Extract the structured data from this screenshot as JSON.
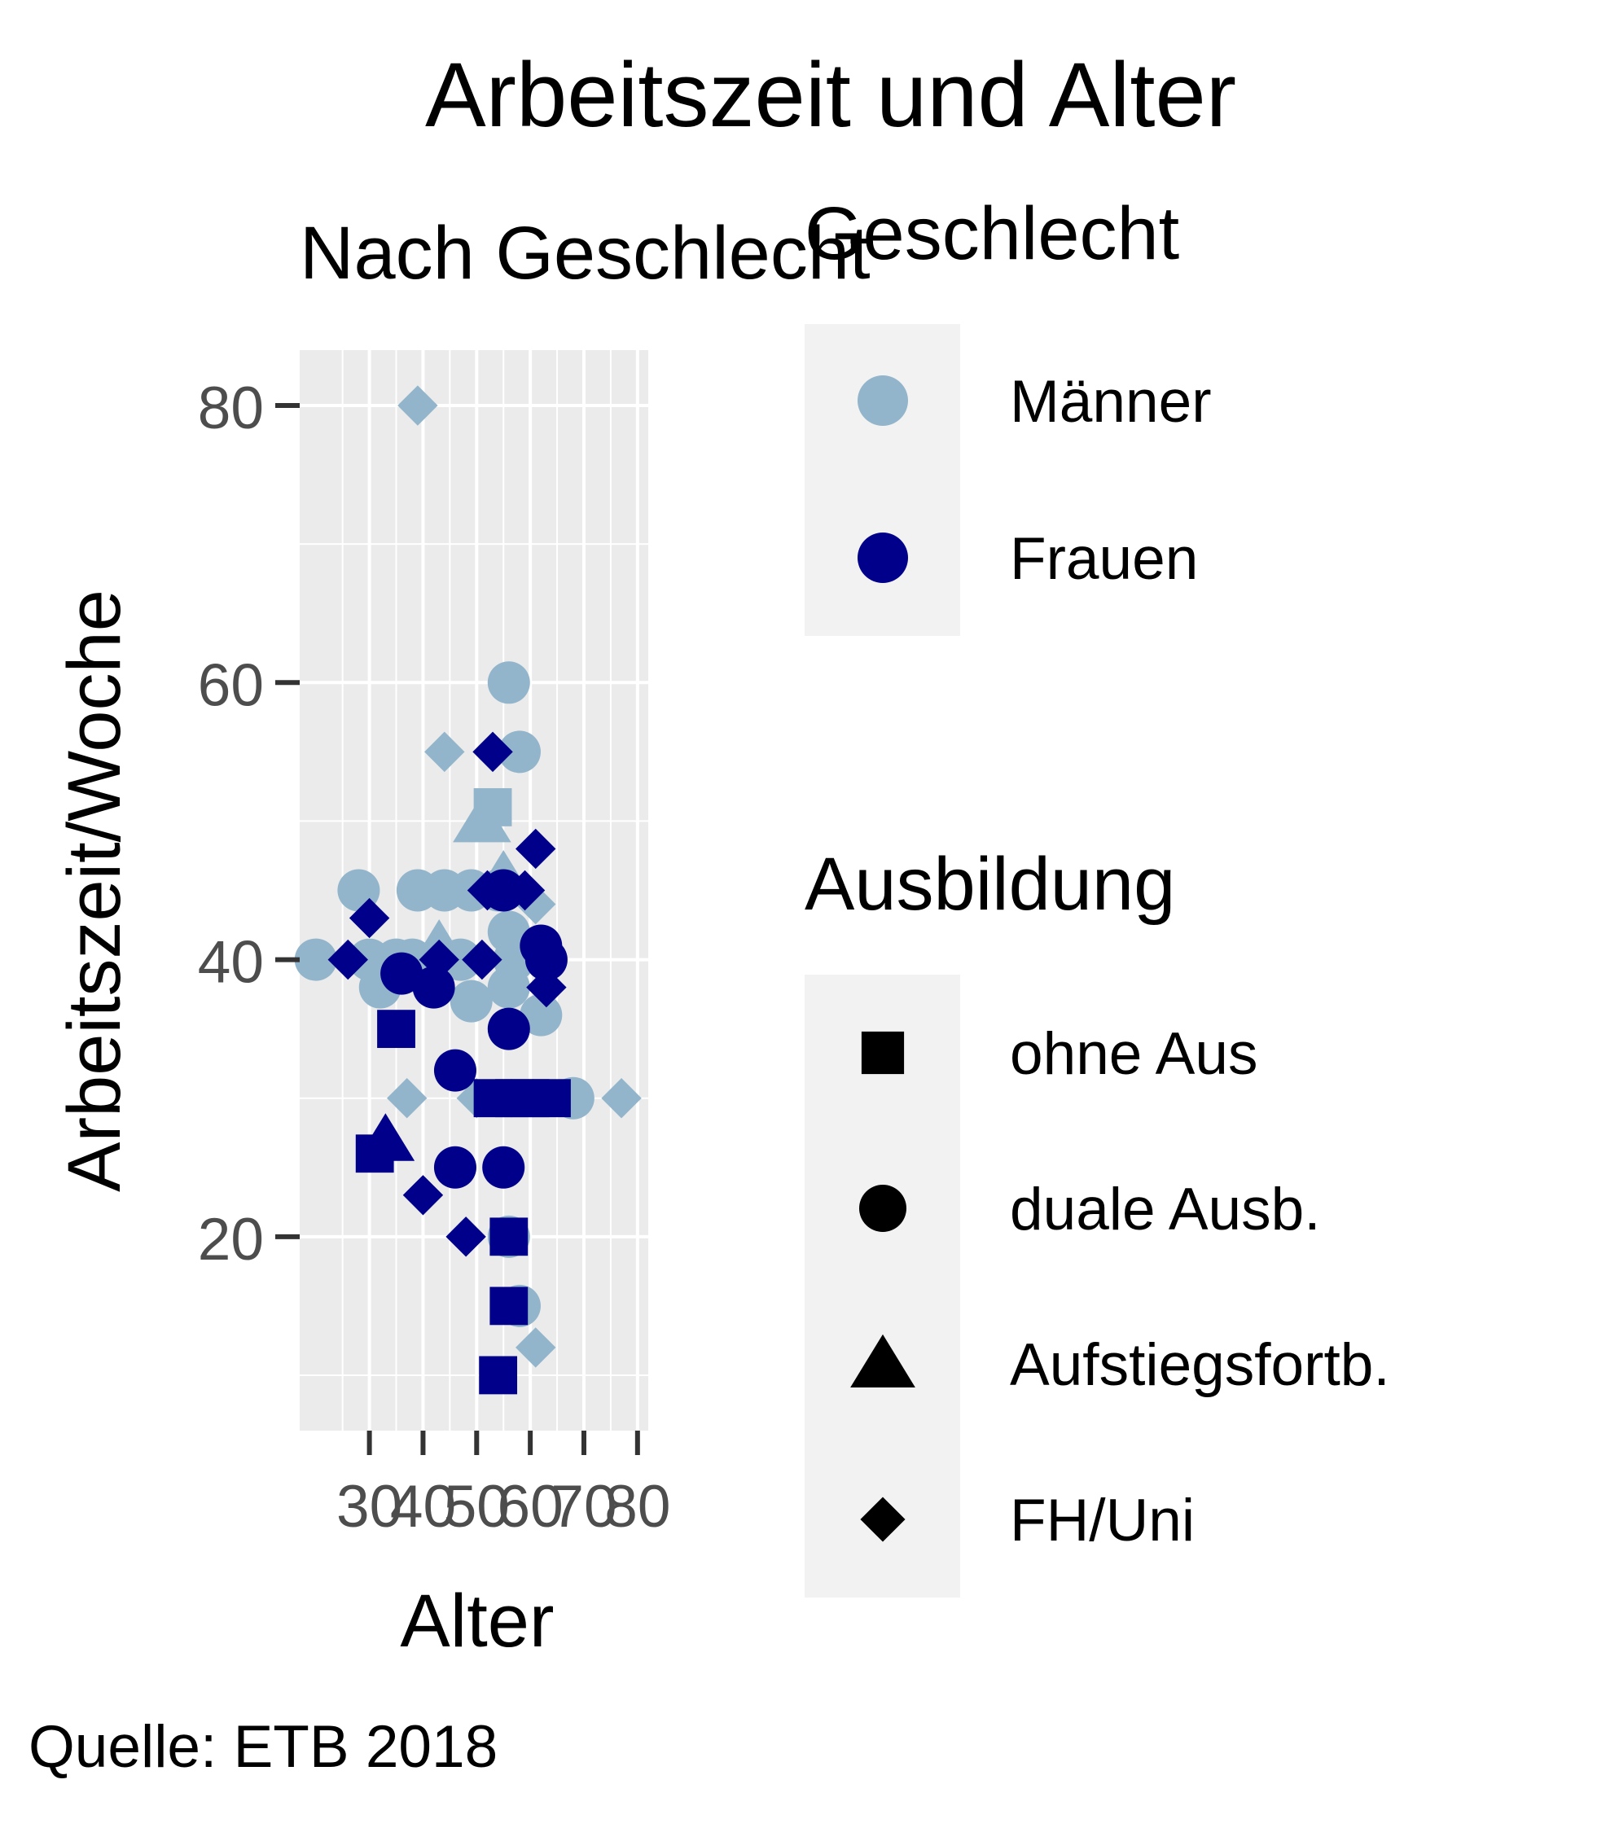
{
  "chart_data": {
    "type": "scatter",
    "title": "Arbeitszeit und Alter",
    "subtitle": "Nach Geschlecht",
    "caption": "Quelle: ETB 2018",
    "xlabel": "Alter",
    "ylabel": "Arbeitszeit/Woche",
    "xlim": [
      17,
      82
    ],
    "ylim": [
      6,
      84
    ],
    "x_ticks": [
      30,
      40,
      50,
      60,
      70,
      80
    ],
    "y_ticks": [
      20,
      40,
      60,
      80
    ],
    "grid": true,
    "colors": {
      "Männer": "#92b5cb",
      "Frauen": "#00008b",
      "panel": "#ebebeb",
      "legend_key": "#f2f2f2"
    },
    "legend": {
      "placement": "right",
      "color": {
        "title": "Geschlecht",
        "items": [
          "Männer",
          "Frauen"
        ]
      },
      "shape": {
        "title": "Ausbildung",
        "items": [
          "ohne Aus",
          "duale Ausb.",
          "Aufstiegsfortb.",
          "FH/Uni"
        ]
      }
    },
    "points": [
      {
        "x": 20,
        "y": 40,
        "sex": "Männer",
        "edu": "duale Ausb."
      },
      {
        "x": 28,
        "y": 45,
        "sex": "Männer",
        "edu": "duale Ausb."
      },
      {
        "x": 30,
        "y": 40,
        "sex": "Männer",
        "edu": "duale Ausb."
      },
      {
        "x": 32,
        "y": 38,
        "sex": "Männer",
        "edu": "duale Ausb."
      },
      {
        "x": 35,
        "y": 40,
        "sex": "Männer",
        "edu": "duale Ausb."
      },
      {
        "x": 38,
        "y": 40,
        "sex": "Männer",
        "edu": "duale Ausb."
      },
      {
        "x": 39,
        "y": 80,
        "sex": "Männer",
        "edu": "FH/Uni"
      },
      {
        "x": 39,
        "y": 45,
        "sex": "Männer",
        "edu": "duale Ausb."
      },
      {
        "x": 37,
        "y": 30,
        "sex": "Männer",
        "edu": "FH/Uni"
      },
      {
        "x": 43,
        "y": 41,
        "sex": "Männer",
        "edu": "Aufstiegsfortb."
      },
      {
        "x": 44,
        "y": 55,
        "sex": "Männer",
        "edu": "FH/Uni"
      },
      {
        "x": 44,
        "y": 45,
        "sex": "Männer",
        "edu": "duale Ausb."
      },
      {
        "x": 47,
        "y": 40,
        "sex": "Männer",
        "edu": "duale Ausb."
      },
      {
        "x": 49,
        "y": 45,
        "sex": "Männer",
        "edu": "duale Ausb."
      },
      {
        "x": 49,
        "y": 37,
        "sex": "Männer",
        "edu": "duale Ausb."
      },
      {
        "x": 50,
        "y": 30,
        "sex": "Männer",
        "edu": "FH/Uni"
      },
      {
        "x": 51,
        "y": 50,
        "sex": "Männer",
        "edu": "Aufstiegsfortb."
      },
      {
        "x": 53,
        "y": 51,
        "sex": "Männer",
        "edu": "ohne Aus"
      },
      {
        "x": 54,
        "y": 45,
        "sex": "Männer",
        "edu": "duale Ausb."
      },
      {
        "x": 55,
        "y": 46,
        "sex": "Männer",
        "edu": "Aufstiegsfortb."
      },
      {
        "x": 56,
        "y": 60,
        "sex": "Männer",
        "edu": "duale Ausb."
      },
      {
        "x": 56,
        "y": 42,
        "sex": "Männer",
        "edu": "duale Ausb."
      },
      {
        "x": 57,
        "y": 40,
        "sex": "Männer",
        "edu": "duale Ausb."
      },
      {
        "x": 56,
        "y": 38,
        "sex": "Männer",
        "edu": "duale Ausb."
      },
      {
        "x": 58,
        "y": 55,
        "sex": "Männer",
        "edu": "duale Ausb."
      },
      {
        "x": 56,
        "y": 20,
        "sex": "Männer",
        "edu": "duale Ausb."
      },
      {
        "x": 58,
        "y": 15,
        "sex": "Männer",
        "edu": "duale Ausb."
      },
      {
        "x": 61,
        "y": 12,
        "sex": "Männer",
        "edu": "FH/Uni"
      },
      {
        "x": 61,
        "y": 44,
        "sex": "Männer",
        "edu": "FH/Uni"
      },
      {
        "x": 62,
        "y": 36,
        "sex": "Männer",
        "edu": "duale Ausb."
      },
      {
        "x": 68,
        "y": 30,
        "sex": "Männer",
        "edu": "duale Ausb."
      },
      {
        "x": 77,
        "y": 30,
        "sex": "Männer",
        "edu": "FH/Uni"
      },
      {
        "x": 26,
        "y": 40,
        "sex": "Frauen",
        "edu": "FH/Uni"
      },
      {
        "x": 30,
        "y": 43,
        "sex": "Frauen",
        "edu": "FH/Uni"
      },
      {
        "x": 31,
        "y": 26,
        "sex": "Frauen",
        "edu": "ohne Aus"
      },
      {
        "x": 33,
        "y": 27,
        "sex": "Frauen",
        "edu": "Aufstiegsfortb."
      },
      {
        "x": 35,
        "y": 35,
        "sex": "Frauen",
        "edu": "ohne Aus"
      },
      {
        "x": 36,
        "y": 39,
        "sex": "Frauen",
        "edu": "duale Ausb."
      },
      {
        "x": 40,
        "y": 23,
        "sex": "Frauen",
        "edu": "FH/Uni"
      },
      {
        "x": 42,
        "y": 38,
        "sex": "Frauen",
        "edu": "duale Ausb."
      },
      {
        "x": 43,
        "y": 40,
        "sex": "Frauen",
        "edu": "FH/Uni"
      },
      {
        "x": 46,
        "y": 32,
        "sex": "Frauen",
        "edu": "duale Ausb."
      },
      {
        "x": 46,
        "y": 25,
        "sex": "Frauen",
        "edu": "duale Ausb."
      },
      {
        "x": 48,
        "y": 20,
        "sex": "Frauen",
        "edu": "FH/Uni"
      },
      {
        "x": 51,
        "y": 40,
        "sex": "Frauen",
        "edu": "FH/Uni"
      },
      {
        "x": 52,
        "y": 45,
        "sex": "Frauen",
        "edu": "FH/Uni"
      },
      {
        "x": 53,
        "y": 55,
        "sex": "Frauen",
        "edu": "FH/Uni"
      },
      {
        "x": 53,
        "y": 30,
        "sex": "Frauen",
        "edu": "ohne Aus"
      },
      {
        "x": 54,
        "y": 10,
        "sex": "Frauen",
        "edu": "ohne Aus"
      },
      {
        "x": 55,
        "y": 45,
        "sex": "Frauen",
        "edu": "duale Ausb."
      },
      {
        "x": 55,
        "y": 25,
        "sex": "Frauen",
        "edu": "duale Ausb."
      },
      {
        "x": 56,
        "y": 35,
        "sex": "Frauen",
        "edu": "duale Ausb."
      },
      {
        "x": 56,
        "y": 20,
        "sex": "Frauen",
        "edu": "ohne Aus"
      },
      {
        "x": 56,
        "y": 15,
        "sex": "Frauen",
        "edu": "ohne Aus"
      },
      {
        "x": 57,
        "y": 30,
        "sex": "Frauen",
        "edu": "ohne Aus"
      },
      {
        "x": 59,
        "y": 45,
        "sex": "Frauen",
        "edu": "FH/Uni"
      },
      {
        "x": 60,
        "y": 30,
        "sex": "Frauen",
        "edu": "ohne Aus"
      },
      {
        "x": 61,
        "y": 48,
        "sex": "Frauen",
        "edu": "FH/Uni"
      },
      {
        "x": 62,
        "y": 41,
        "sex": "Frauen",
        "edu": "duale Ausb."
      },
      {
        "x": 63,
        "y": 40,
        "sex": "Frauen",
        "edu": "duale Ausb."
      },
      {
        "x": 63,
        "y": 38,
        "sex": "Frauen",
        "edu": "FH/Uni"
      },
      {
        "x": 64,
        "y": 30,
        "sex": "Frauen",
        "edu": "ohne Aus"
      }
    ]
  }
}
